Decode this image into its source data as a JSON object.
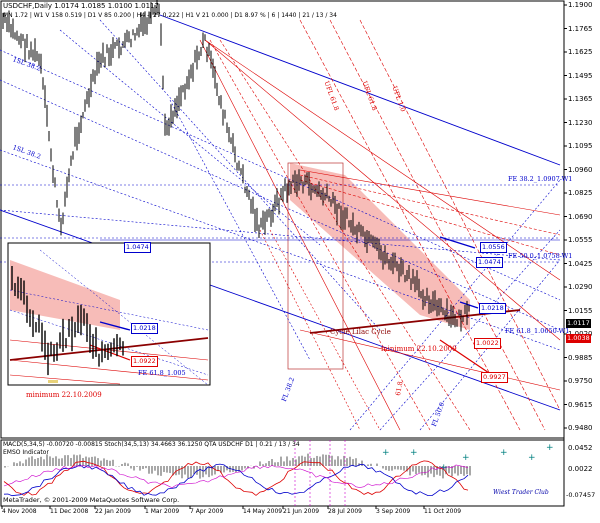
{
  "header": {
    "line1": "USDCHF,Daily  1.0174 1.0185 1.0100 1.0117",
    "line2": "MN 1.72 | W1 V 158  0.519 | D1 V 85  0.200 | H4 -| 27  0.222 | H1 V 21  0.000 | D1  8.97 %  | 6 | 1440 | 21 / 13 / 34"
  },
  "price_axis": [
    "1.1900",
    "1.1765",
    "1.1625",
    "1.1495",
    "1.1365",
    "1.1230",
    "1.1095",
    "1.0960",
    "1.0825",
    "1.0690",
    "1.0555",
    "1.0425",
    "1.0290",
    "1.0155",
    "1.0020",
    "0.9885",
    "0.9750",
    "0.9615",
    "0.9480"
  ],
  "current_price": "1.0117",
  "bid_price": "1.0038",
  "indicator_axis": [
    "0.0452",
    "0.0022",
    "-0.07457"
  ],
  "date_axis": [
    "4 Nov 2008",
    "11 Dec 2008",
    "22 Jan 2009",
    "1 Mar 2009",
    "7 Apr 2009",
    "14 May 2009",
    "21 Jun 2009",
    "28 Jul 2009",
    "3 Sep 2009",
    "11 Oct 2009"
  ],
  "indicator_header": "MACD(5,34,5)  -0.00720 -0.00815  Stoch(34,5,13) 34.4663 36.1250  QTA USDCHF D1 | 0.21 / 13 / 34",
  "indicator_header2": "EMSO Indicator",
  "copyright": "MetaTrader, © 2001-2009 MetaQuotes Software Corp.",
  "watermark": "Wiest Trader Club",
  "labels": {
    "fe382": "FE 38.2_1.0907-W1",
    "fe50": "FE 50.0_1.0758-W1",
    "fe618": "FE 61.8_1.0650-W1",
    "cycle": "Cycle Lilac Cycle",
    "minimum": "minimum 22.10.2009",
    "inset_minimum": "minimum 22.10.2009",
    "inset_fe618": "FE 61.8_1.005",
    "sl382": "1SL 38.2",
    "sl618": "1SL 38.2",
    "ufl1": "UFL 61.8",
    "ufl2": "UFL 61.8",
    "ufl3": "UFL 1.0",
    "fl382": "FL 38.2",
    "fl500": "FL 50.0",
    "f618": "61.8"
  },
  "price_tags": {
    "t0556": "1.0556",
    "t0474": "1.0474",
    "t0474b": "1.0474",
    "t0218": "1.0218",
    "t0022": "1.0022",
    "t9927": "0.9927",
    "inset0218": "1.0218",
    "inset9922": "1.0922"
  },
  "colors": {
    "blue": "#0000cc",
    "red": "#dd0000",
    "darkred": "#8b0000",
    "channel": "#f4a09a",
    "bidtag": "#dd0000"
  }
}
